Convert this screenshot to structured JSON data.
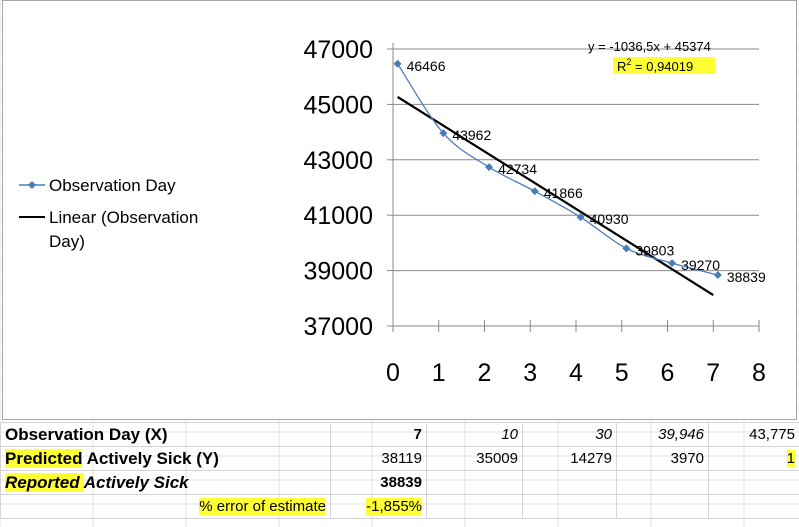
{
  "chart_data": {
    "type": "scatter",
    "x": [
      0,
      1,
      2,
      3,
      4,
      5,
      6,
      7
    ],
    "series": [
      {
        "name": "Observation Day",
        "values": [
          46466,
          43962,
          42734,
          41866,
          40930,
          39803,
          39270,
          38839
        ],
        "labels": [
          "46466",
          "43962",
          "42734",
          "41866",
          "40930",
          "39803",
          "39270",
          "38839"
        ],
        "color": "#4a7ebb",
        "smooth": true
      }
    ],
    "trendline": {
      "name": "Linear (Observation Day)",
      "slope": -1036.5,
      "intercept": 45374,
      "x_range": [
        0.1,
        7
      ],
      "color": "#000000",
      "equation": "y = -1036,5x + 45374",
      "r2_label": "R",
      "r2_sup": "2",
      "r2_value": " = 0,94019",
      "r2_highlight": "#ffff33"
    },
    "xticks": [
      "0",
      "1",
      "2",
      "3",
      "4",
      "5",
      "6",
      "7",
      "8"
    ],
    "yticks": [
      "37000",
      "39000",
      "41000",
      "43000",
      "45000",
      "47000"
    ],
    "xlim": [
      0,
      8
    ],
    "ylim": [
      37000,
      47000
    ],
    "grid": "horizontal",
    "legend_position": "left",
    "legend": [
      {
        "label_line1": "Observation Day",
        "label_line2": ""
      },
      {
        "label_line1": "Linear (Observation",
        "label_line2": "Day)"
      }
    ]
  },
  "table": {
    "row1": {
      "label": "Observation Day (X)",
      "cells": [
        "7",
        "10",
        "30",
        "39,946",
        "43,775"
      ]
    },
    "row2": {
      "label_hl": "Predicted",
      "label_rest": " Actively Sick (Y)",
      "cells": [
        "38119",
        "35009",
        "14279",
        "3970",
        "1"
      ]
    },
    "row3": {
      "label_hl": "Reported ",
      "label_rest": "Actively Sick",
      "cells": [
        "38839",
        "",
        "",
        "",
        ""
      ]
    },
    "row4": {
      "label": "% error of estimate",
      "cells": [
        "-1,855%",
        "",
        "",
        "",
        ""
      ]
    }
  }
}
